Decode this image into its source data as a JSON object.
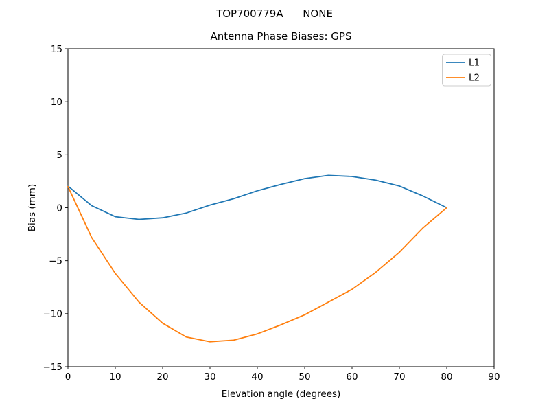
{
  "figure": {
    "suptitle": "TOP700779A      NONE",
    "background_color": "#ffffff",
    "spine_color": "#000000",
    "legend_border_color": "#cccccc"
  },
  "chart_data": {
    "type": "line",
    "suptitle": "TOP700779A      NONE",
    "title": "Antenna Phase Biases: GPS",
    "xlabel": "Elevation angle (degrees)",
    "ylabel": "Bias (mm)",
    "xlim": [
      0,
      90
    ],
    "ylim": [
      -15,
      15
    ],
    "xticks": [
      0,
      10,
      20,
      30,
      40,
      50,
      60,
      70,
      80,
      90
    ],
    "yticks": [
      -15,
      -10,
      -5,
      0,
      5,
      10,
      15
    ],
    "xtick_labels": [
      "0",
      "10",
      "20",
      "30",
      "40",
      "50",
      "60",
      "70",
      "80",
      "90"
    ],
    "ytick_labels": [
      "−15",
      "−10",
      "−5",
      "0",
      "5",
      "10",
      "15"
    ],
    "grid": false,
    "legend_position": "upper right",
    "x": [
      0,
      5,
      10,
      15,
      20,
      25,
      30,
      35,
      40,
      45,
      50,
      55,
      60,
      65,
      70,
      75,
      80
    ],
    "series": [
      {
        "name": "L1",
        "color": "#1f77b4",
        "values": [
          2.05,
          0.2,
          -0.85,
          -1.1,
          -0.95,
          -0.5,
          0.25,
          0.85,
          1.6,
          2.2,
          2.75,
          3.05,
          2.95,
          2.6,
          2.05,
          1.1,
          0.0
        ]
      },
      {
        "name": "L2",
        "color": "#ff7f0e",
        "values": [
          2.0,
          -2.8,
          -6.2,
          -8.9,
          -10.9,
          -12.2,
          -12.65,
          -12.5,
          -11.9,
          -11.05,
          -10.1,
          -8.9,
          -7.7,
          -6.1,
          -4.2,
          -1.9,
          0.0
        ]
      }
    ]
  }
}
